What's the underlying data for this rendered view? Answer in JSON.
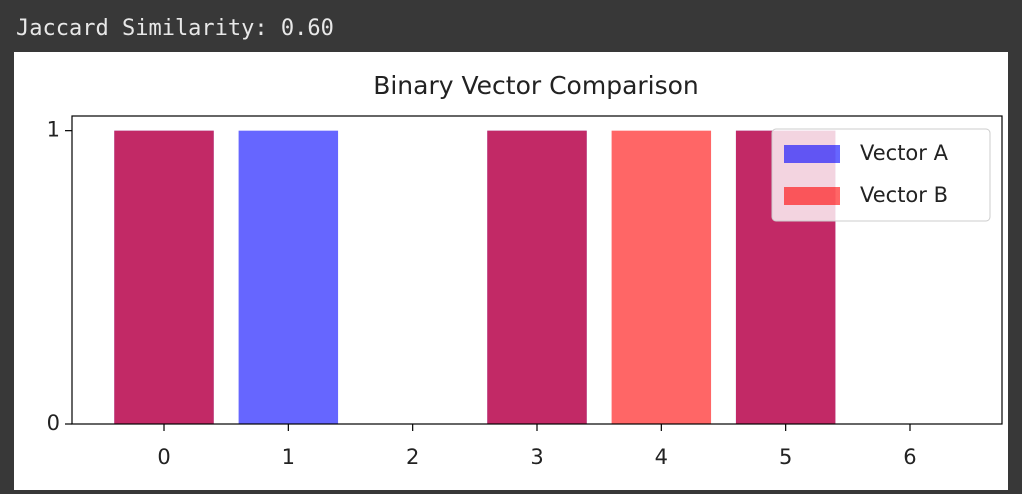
{
  "output_text": "Jaccard Similarity: 0.60",
  "chart_data": {
    "type": "bar",
    "title": "Binary Vector Comparison",
    "x": [
      0,
      1,
      2,
      3,
      4,
      5,
      6
    ],
    "series": [
      {
        "name": "Vector A",
        "color": "#0000ff",
        "values": [
          1,
          1,
          0,
          1,
          0,
          1,
          0
        ]
      },
      {
        "name": "Vector B",
        "color": "#ff0000",
        "values": [
          1,
          0,
          0,
          1,
          1,
          1,
          0
        ]
      }
    ],
    "alpha": 0.6,
    "xlim": [
      -0.74,
      6.74
    ],
    "xticks": [
      0,
      1,
      2,
      3,
      4,
      5,
      6
    ],
    "ylim": [
      0,
      1.05
    ],
    "yticks": [
      0,
      1
    ],
    "legend": "upper right"
  }
}
